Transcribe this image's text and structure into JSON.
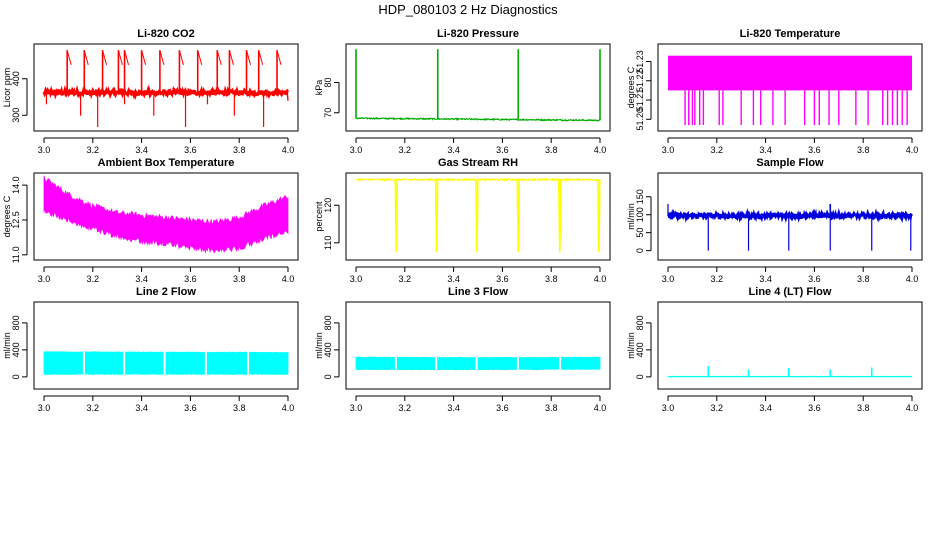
{
  "figure": {
    "title": "HDP_080103  2 Hz Diagnostics"
  },
  "chart_data": [
    {
      "type": "line",
      "title": "Li-820 CO2",
      "ylabel": "Licor ppm",
      "color": "#ff0000",
      "xlim": [
        3.0,
        4.0
      ],
      "ylim": [
        268,
        484
      ],
      "xticks": [
        3.0,
        3.2,
        3.4,
        3.6,
        3.8,
        4.0
      ],
      "xtick_labels": [
        "3.0",
        "3.2",
        "3.4",
        "3.6",
        "3.8",
        "4.0"
      ],
      "yticks": [
        300,
        400
      ],
      "ytick_labels": [
        "300",
        "400"
      ],
      "signal": {
        "kind": "spiky",
        "base": 362,
        "noise": [
          -6,
          6
        ],
        "spikes_up": [
          3.095,
          3.165,
          3.24,
          3.305,
          3.33,
          3.4,
          3.475,
          3.555,
          3.63,
          3.71,
          3.76,
          3.83,
          3.88,
          3.955
        ],
        "spike_up_to": 478,
        "spikes_down": [
          3.01,
          3.15,
          3.22,
          3.33,
          3.45,
          3.58,
          3.67,
          3.78,
          3.9
        ],
        "spike_down_to": [
          330,
          268
        ],
        "end_drop": 340
      }
    },
    {
      "type": "line",
      "title": "Li-820 Pressure",
      "ylabel": "kPa",
      "color": "#00aa00",
      "xlim": [
        3.0,
        4.0
      ],
      "ylim": [
        65.3,
        91.4
      ],
      "xticks": [
        3.0,
        3.2,
        3.4,
        3.6,
        3.8,
        4.0
      ],
      "xtick_labels": [
        "3.0",
        "3.2",
        "3.4",
        "3.6",
        "3.8",
        "4.0"
      ],
      "yticks": [
        70,
        80
      ],
      "ytick_labels": [
        "70",
        "80"
      ],
      "signal": {
        "kind": "spiky",
        "base_start": 68.2,
        "base_end": 67.5,
        "noise": [
          -0.2,
          0.2
        ],
        "spikes_up": [
          3.0,
          3.335,
          3.665,
          4.0
        ],
        "spike_up_to": 91.0
      }
    },
    {
      "type": "line",
      "title": "Li-820 Temperature",
      "ylabel": "degrees C",
      "color": "#ff00ff",
      "xlim": [
        3.0,
        4.0
      ],
      "ylim": [
        51.196,
        51.237
      ],
      "xticks": [
        3.0,
        3.2,
        3.4,
        3.6,
        3.8,
        4.0
      ],
      "xtick_labels": [
        "3.0",
        "3.2",
        "3.4",
        "3.6",
        "3.8",
        "4.0"
      ],
      "yticks": [
        51.2,
        51.21,
        51.22,
        51.23
      ],
      "ytick_labels": [
        "51.20",
        "51.21",
        "51.22",
        "51.23"
      ],
      "signal": {
        "kind": "band",
        "low": 51.215,
        "high": 51.233,
        "drops": [
          3.07,
          3.085,
          3.1,
          3.11,
          3.13,
          3.145,
          3.21,
          3.225,
          3.3,
          3.35,
          3.38,
          3.43,
          3.48,
          3.56,
          3.6,
          3.62,
          3.66,
          3.7,
          3.77,
          3.82,
          3.88,
          3.9,
          3.92,
          3.94,
          3.96,
          3.98
        ],
        "drop_to": 51.197
      }
    },
    {
      "type": "area",
      "title": "Ambient Box Temperature",
      "ylabel": "degrees C",
      "color": "#ff00ff",
      "xlim": [
        3.0,
        4.0
      ],
      "ylim": [
        10.95,
        14.35
      ],
      "xticks": [
        3.0,
        3.2,
        3.4,
        3.6,
        3.8,
        4.0
      ],
      "xtick_labels": [
        "3.0",
        "3.2",
        "3.4",
        "3.6",
        "3.8",
        "4.0"
      ],
      "yticks": [
        11.0,
        12.5,
        14.0
      ],
      "ytick_labels": [
        "11.0",
        "12.5",
        "14.0"
      ],
      "band": {
        "x": [
          3.0,
          3.1,
          3.2,
          3.3,
          3.4,
          3.5,
          3.6,
          3.7,
          3.8,
          3.9,
          4.0
        ],
        "low": [
          12.9,
          12.5,
          12.1,
          11.8,
          11.6,
          11.5,
          11.3,
          11.2,
          11.3,
          11.7,
          12.0
        ],
        "high": [
          14.3,
          13.6,
          13.1,
          12.8,
          12.7,
          12.6,
          12.5,
          12.4,
          12.6,
          13.1,
          13.5
        ]
      }
    },
    {
      "type": "line",
      "title": "Gas Stream RH",
      "ylabel": "percent",
      "color": "#ffff00",
      "xlim": [
        3.0,
        4.0
      ],
      "ylim": [
        106.5,
        127.5
      ],
      "xticks": [
        3.0,
        3.2,
        3.4,
        3.6,
        3.8,
        4.0
      ],
      "xtick_labels": [
        "3.0",
        "3.2",
        "3.4",
        "3.6",
        "3.8",
        "4.0"
      ],
      "yticks": [
        110,
        120
      ],
      "ytick_labels": [
        "110",
        "120"
      ],
      "signal": {
        "kind": "dips",
        "base": 126.8,
        "noise": [
          -0.2,
          0.2
        ],
        "dips": [
          3.165,
          3.33,
          3.495,
          3.665,
          3.835,
          3.995
        ],
        "dip_to": 107.5
      }
    },
    {
      "type": "line",
      "title": "Sample Flow",
      "ylabel": "ml/min",
      "color": "#0000dd",
      "xlim": [
        3.0,
        4.0
      ],
      "ylim": [
        -15,
        205
      ],
      "xticks": [
        3.0,
        3.2,
        3.4,
        3.6,
        3.8,
        4.0
      ],
      "xtick_labels": [
        "3.0",
        "3.2",
        "3.4",
        "3.6",
        "3.8",
        "4.0"
      ],
      "yticks": [
        0,
        50,
        100,
        150
      ],
      "ytick_labels": [
        "0",
        "50",
        "100",
        "150"
      ],
      "signal": {
        "kind": "spiky",
        "base": 97,
        "noise": [
          -6,
          6
        ],
        "start_spike": 130,
        "spikes_down": [
          3.165,
          3.33,
          3.495,
          3.665,
          3.835,
          3.995
        ],
        "spike_down_to": [
          0,
          0
        ],
        "spikes_up": [
          3.665
        ],
        "spike_up_to": 130
      }
    },
    {
      "type": "area",
      "title": "Line 2 Flow",
      "ylabel": "ml/min",
      "color": "#00ffff",
      "xlim": [
        3.0,
        4.0
      ],
      "ylim": [
        -120,
        1050
      ],
      "xticks": [
        3.0,
        3.2,
        3.4,
        3.6,
        3.8,
        4.0
      ],
      "xtick_labels": [
        "3.0",
        "3.2",
        "3.4",
        "3.6",
        "3.8",
        "4.0"
      ],
      "yticks": [
        0,
        400,
        800
      ],
      "ytick_labels": [
        "0",
        "400",
        "800"
      ],
      "band": {
        "x": [
          3.0,
          3.5,
          4.0
        ],
        "low": [
          40,
          40,
          40
        ],
        "high": [
          370,
          365,
          360
        ]
      },
      "gaps": [
        3.165,
        3.33,
        3.495,
        3.665,
        3.835
      ]
    },
    {
      "type": "area",
      "title": "Line 3 Flow",
      "ylabel": "ml/min",
      "color": "#00ffff",
      "xlim": [
        3.0,
        4.0
      ],
      "ylim": [
        -120,
        1050
      ],
      "xticks": [
        3.0,
        3.2,
        3.4,
        3.6,
        3.8,
        4.0
      ],
      "xtick_labels": [
        "3.0",
        "3.2",
        "3.4",
        "3.6",
        "3.8",
        "4.0"
      ],
      "yticks": [
        0,
        400,
        800
      ],
      "ytick_labels": [
        "0",
        "400",
        "800"
      ],
      "band": {
        "x": [
          3.0,
          3.5,
          4.0
        ],
        "low": [
          110,
          110,
          115
        ],
        "high": [
          290,
          285,
          290
        ]
      },
      "gaps": [
        3.165,
        3.33,
        3.495,
        3.665,
        3.835
      ]
    },
    {
      "type": "line",
      "title": "Line 4 (LT) Flow",
      "ylabel": "ml/min",
      "color": "#00ffff",
      "xlim": [
        3.0,
        4.0
      ],
      "ylim": [
        -120,
        1050
      ],
      "xticks": [
        3.0,
        3.2,
        3.4,
        3.6,
        3.8,
        4.0
      ],
      "xtick_labels": [
        "3.0",
        "3.2",
        "3.4",
        "3.6",
        "3.8",
        "4.0"
      ],
      "yticks": [
        0,
        400,
        800
      ],
      "ytick_labels": [
        "0",
        "400",
        "800"
      ],
      "signal": {
        "kind": "spiky",
        "base": 5,
        "noise": [
          -1,
          1
        ],
        "spikes_up": [
          3.165,
          3.33,
          3.495,
          3.665,
          3.835
        ],
        "spike_up_to": [
          160,
          110,
          130,
          110,
          140
        ]
      }
    }
  ]
}
